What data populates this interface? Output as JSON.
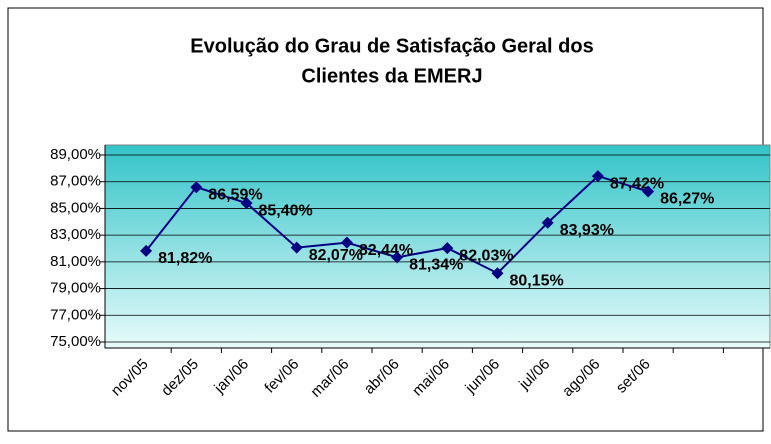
{
  "chart_data": {
    "type": "line",
    "title": [
      "Evolução do Grau de Satisfação Geral dos",
      "Clientes da EMERJ"
    ],
    "categories": [
      "nov/05",
      "dez/05",
      "jan/06",
      "fev/06",
      "mar/06",
      "abr/06",
      "mai/06",
      "jun/06",
      "jul/06",
      "ago/06",
      "set/06",
      null,
      null
    ],
    "series": [
      {
        "name": null,
        "color": "#000080",
        "values": [
          81.82,
          86.59,
          85.4,
          82.07,
          82.44,
          81.34,
          82.03,
          80.15,
          83.93,
          87.42,
          86.27,
          null,
          null
        ],
        "value_labels": [
          "81,82%",
          "86,59%",
          "85,40%",
          "82,07%",
          "82,44%",
          "81,34%",
          "82,03%",
          "80,15%",
          "83,93%",
          "87,42%",
          "86,27%",
          null,
          null
        ]
      }
    ],
    "ylim": [
      75,
      89
    ],
    "yticks": [
      {
        "value": 75,
        "label": "75,00%"
      },
      {
        "value": 77,
        "label": "77,00%"
      },
      {
        "value": 79,
        "label": "79,00%"
      },
      {
        "value": 81,
        "label": "81,00%"
      },
      {
        "value": 83,
        "label": "83,00%"
      },
      {
        "value": 85,
        "label": "85,00%"
      },
      {
        "value": 87,
        "label": "87,00%"
      },
      {
        "value": 89,
        "label": "89,00%"
      }
    ],
    "grid": true
  }
}
